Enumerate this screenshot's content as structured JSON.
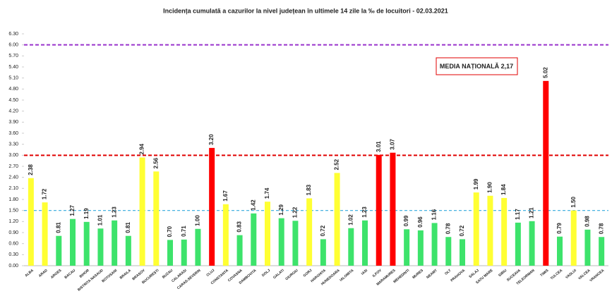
{
  "chart_data": {
    "type": "bar",
    "title": "Incidența cumulată a cazurilor la nivel județean în ultimele 14 zile la ‰ de locuitori - 02.03.2021",
    "annotation": "MEDIA NAȚIONALĂ 2,17",
    "categories": [
      "ALBA",
      "ARAD",
      "ARGES",
      "BACAU",
      "BIHOR",
      "BISTRITA NASAUD",
      "BOTOSANI",
      "BRAILA",
      "BRASOV",
      "BUCUREȘTI",
      "BUZAU",
      "CALARASI",
      "CARAS-SEVERIN",
      "CLUJ",
      "CONSTANTA",
      "COVASNA",
      "DAMBOVITA",
      "DOLJ",
      "GALATI",
      "GIURGIU",
      "GORJ",
      "HARGHITA",
      "HUNEDOARA",
      "IALOMITA",
      "IASI",
      "ILFOV",
      "MARAMURES",
      "MEHEDINTI",
      "MURES",
      "NEAMT",
      "OLT",
      "PRAHOVA",
      "SALAJ",
      "SATU MARE",
      "SIBIU",
      "SUCEAVA",
      "TELEORMAN",
      "TIMIS",
      "TULCEA",
      "VASLUI",
      "VALCEA",
      "VRANCEA"
    ],
    "values": [
      2.38,
      1.72,
      0.81,
      1.27,
      1.19,
      1.01,
      1.23,
      0.81,
      2.94,
      2.56,
      0.7,
      0.71,
      1,
      3.2,
      1.67,
      0.83,
      1.42,
      1.74,
      1.29,
      1.22,
      1.83,
      0.72,
      2.52,
      1.02,
      1.23,
      3.01,
      3.07,
      0.99,
      0.96,
      1.16,
      0.78,
      0.72,
      1.99,
      1.9,
      1.84,
      1.17,
      1.21,
      5.02,
      0.79,
      1.5,
      0.98,
      0.78
    ],
    "value_labels": [
      "2.38",
      "1.72",
      "0.81",
      "1.27",
      "1.19",
      "1.01",
      "1.23",
      "0.81",
      "2.94",
      "2.56",
      "0.70",
      "0.71",
      "1.00",
      "3.20",
      "1.67",
      "0.83",
      "1.42",
      "1.74",
      "1.29",
      "1.22",
      "1.83",
      "0.72",
      "2.52",
      "1.02",
      "1.23",
      "3.01",
      "3.07",
      "0.99",
      "0.96",
      "1.16",
      "0.78",
      "0.72",
      "1.99",
      "1.90",
      "1.84",
      "1.17",
      "1.21",
      "5.02",
      "0.79",
      "1.50",
      "0.98",
      "0.78"
    ],
    "colors": [
      "#ffff33",
      "#ffff33",
      "#3de36b",
      "#3de36b",
      "#3de36b",
      "#3de36b",
      "#3de36b",
      "#3de36b",
      "#ffff33",
      "#ffff33",
      "#3de36b",
      "#3de36b",
      "#3de36b",
      "#ff0000",
      "#ffff33",
      "#3de36b",
      "#3de36b",
      "#ffff33",
      "#3de36b",
      "#3de36b",
      "#ffff33",
      "#3de36b",
      "#ffff33",
      "#3de36b",
      "#3de36b",
      "#ff0000",
      "#ff0000",
      "#3de36b",
      "#3de36b",
      "#3de36b",
      "#3de36b",
      "#3de36b",
      "#ffff33",
      "#ffff33",
      "#ffff33",
      "#3de36b",
      "#3de36b",
      "#ff0000",
      "#3de36b",
      "#ffff33",
      "#3de36b",
      "#3de36b"
    ],
    "ylim": [
      0,
      6.3
    ],
    "yticks": [
      {
        "value": 0,
        "label": "0.00"
      },
      {
        "value": 0.3,
        "label": "0.30"
      },
      {
        "value": 0.6,
        "label": "0.60"
      },
      {
        "value": 0.9,
        "label": "0.90"
      },
      {
        "value": 1.2,
        "label": "1.20"
      },
      {
        "value": 1.5,
        "label": "1.50"
      },
      {
        "value": 1.8,
        "label": "1.80"
      },
      {
        "value": 2.1,
        "label": "2.10"
      },
      {
        "value": 2.4,
        "label": "2.40"
      },
      {
        "value": 2.7,
        "label": "2.70"
      },
      {
        "value": 3,
        "label": "3.00"
      },
      {
        "value": 3.3,
        "label": "3.30"
      },
      {
        "value": 3.6,
        "label": "3.60"
      },
      {
        "value": 3.9,
        "label": "3.90"
      },
      {
        "value": 4.2,
        "label": "4.20"
      },
      {
        "value": 4.5,
        "label": "4.50"
      },
      {
        "value": 4.8,
        "label": "4.80"
      },
      {
        "value": 5.1,
        "label": "5.10"
      },
      {
        "value": 5.4,
        "label": "5.40"
      },
      {
        "value": 5.7,
        "label": "5.70"
      },
      {
        "value": 6,
        "label": "6.00"
      },
      {
        "value": 6.3,
        "label": "6.30"
      }
    ],
    "reference_lines": [
      {
        "value": 6,
        "color": "#9933cc"
      },
      {
        "value": 3,
        "color": "#e00000"
      },
      {
        "value": 1.5,
        "color": "#33aadd"
      }
    ]
  }
}
